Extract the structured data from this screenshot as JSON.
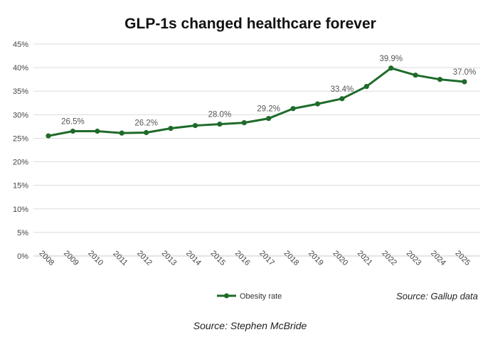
{
  "chart_data": {
    "type": "line",
    "title": "GLP-1s changed healthcare forever",
    "x": [
      "2008",
      "2009",
      "2010",
      "2011",
      "2012",
      "2013",
      "2014",
      "2015",
      "2016",
      "2017",
      "2018",
      "2019",
      "2020",
      "2021",
      "2022",
      "2023",
      "2024",
      "2025"
    ],
    "series": [
      {
        "name": "Obesity rate",
        "values": [
          25.5,
          26.5,
          26.5,
          26.1,
          26.2,
          27.1,
          27.7,
          28.0,
          28.3,
          29.2,
          31.3,
          32.3,
          33.4,
          36.0,
          39.9,
          38.4,
          37.5,
          37.0
        ]
      }
    ],
    "data_labels": [
      {
        "x": "2009",
        "text": "26.5%"
      },
      {
        "x": "2012",
        "text": "26.2%"
      },
      {
        "x": "2015",
        "text": "28.0%"
      },
      {
        "x": "2017",
        "text": "29.2%"
      },
      {
        "x": "2020",
        "text": "33.4%"
      },
      {
        "x": "2022",
        "text": "39.9%"
      },
      {
        "x": "2025",
        "text": "37.0%"
      }
    ],
    "ylim": [
      0,
      45
    ],
    "yticks": [
      "0%",
      "5%",
      "10%",
      "15%",
      "20%",
      "25%",
      "30%",
      "35%",
      "40%",
      "45%"
    ],
    "grid": "horizontal",
    "legend_position": "bottom",
    "source_inner": "Source: Gallup data",
    "caption": "Source: Stephen McBride",
    "line_color": "#1e6b2a"
  }
}
